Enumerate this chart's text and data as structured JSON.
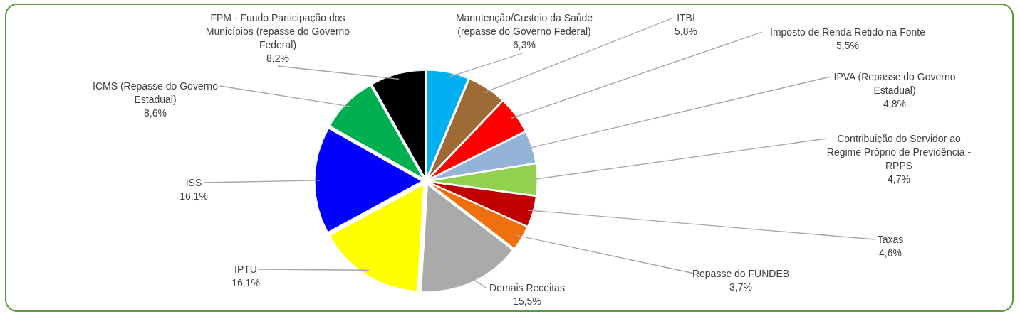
{
  "chart_data": {
    "type": "pie",
    "categories": [
      "Manutenção/Custeio da Saúde (repasse do Governo Federal)",
      "ITBI",
      "Imposto de Renda Retido na Fonte",
      "IPVA (Repasse do Governo Estadual)",
      "Contribuição do Servidor ao Regime Próprio de Previdência - RPPS",
      "Taxas",
      "Repasse do FUNDEB",
      "Demais Receitas",
      "IPTU",
      "ISS",
      "ICMS (Repasse do Governo Estadual)",
      "FPM - Fundo Participação dos Municípios (repasse do Governo Federal)"
    ],
    "values": [
      6.3,
      5.8,
      5.5,
      4.8,
      4.7,
      4.6,
      3.7,
      15.5,
      16.1,
      16.1,
      8.6,
      8.2
    ],
    "value_labels": [
      "6,3%",
      "5,8%",
      "5,5%",
      "4,8%",
      "4,7%",
      "4,6%",
      "3,7%",
      "15,5%",
      "16,1%",
      "16,1%",
      "8,6%",
      "8,2%"
    ],
    "colors": [
      "#00b0f0",
      "#9e6a35",
      "#ff0000",
      "#95b3d7",
      "#92d050",
      "#c00000",
      "#f07010",
      "#aaaaaa",
      "#ffff00",
      "#0000ff",
      "#00b050",
      "#000000"
    ]
  }
}
